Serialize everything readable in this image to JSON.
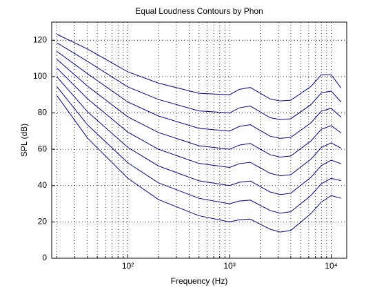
{
  "chart_data": {
    "type": "line",
    "title": "Equal Loudness Contours by Phon",
    "xlabel": "Frequency (Hz)",
    "ylabel": "SPL (dB)",
    "xscale": "log",
    "grid": true,
    "grid_style": "dotted",
    "xlim": [
      17.8,
      14200
    ],
    "ylim": [
      0,
      130
    ],
    "xticks": [
      {
        "value": 100,
        "label": "10²"
      },
      {
        "value": 1000,
        "label": "10³"
      },
      {
        "value": 10000,
        "label": "10⁴"
      }
    ],
    "xminorticks": [
      20,
      30,
      40,
      50,
      60,
      70,
      80,
      90,
      200,
      300,
      400,
      500,
      600,
      700,
      800,
      900,
      2000,
      3000,
      4000,
      5000,
      6000,
      7000,
      8000,
      9000
    ],
    "yticks": [
      0,
      20,
      40,
      60,
      80,
      100,
      120
    ],
    "x": [
      20,
      40,
      100,
      200,
      500,
      1000,
      1250,
      1600,
      2500,
      3150,
      4000,
      6300,
      8000,
      10000,
      12500
    ],
    "series": [
      {
        "color": "#00008b",
        "values": [
          89.6,
          66.2,
          44.0,
          32.3,
          23.4,
          20,
          21.2,
          21.5,
          16.0,
          14.4,
          15.3,
          24.5,
          31,
          34.5,
          33
        ]
      },
      {
        "color": "#00008b",
        "values": [
          94.5,
          73.5,
          52.5,
          41.5,
          33.0,
          30,
          31.5,
          32.0,
          26.3,
          24.8,
          25.6,
          34.5,
          41,
          44,
          42.7
        ]
      },
      {
        "color": "#00008b",
        "values": [
          99.9,
          80.7,
          61.0,
          50.8,
          42.6,
          40,
          41.8,
          42.5,
          36.5,
          35.0,
          35.8,
          44.5,
          51,
          54,
          52
        ]
      },
      {
        "color": "#00008b",
        "values": [
          104.7,
          87.8,
          69.4,
          60.0,
          52.2,
          50,
          52.1,
          52.8,
          46.8,
          45.4,
          46.0,
          54.5,
          61,
          63.5,
          60.6
        ]
      },
      {
        "color": "#00008b",
        "values": [
          109.5,
          94.8,
          77.8,
          69.2,
          61.9,
          60,
          62.3,
          63.2,
          57.0,
          55.7,
          56.3,
          64.5,
          71,
          73,
          69
        ]
      },
      {
        "color": "#00008b",
        "values": [
          113.9,
          101.6,
          86.0,
          78.3,
          71.5,
          70,
          72.6,
          73.5,
          67.2,
          66.0,
          66.5,
          74.5,
          81,
          82.5,
          77.7
        ]
      },
      {
        "color": "#00008b",
        "values": [
          118.6,
          108.4,
          94.3,
          87.4,
          81.1,
          80,
          82.8,
          83.8,
          77.4,
          76.3,
          76.8,
          84.5,
          91,
          92,
          86
        ]
      },
      {
        "color": "#00008b",
        "values": [
          123.3,
          115.2,
          102.6,
          96.4,
          90.8,
          90,
          93.0,
          94.0,
          87.7,
          86.6,
          87.0,
          94.5,
          101,
          101,
          93.7
        ]
      }
    ]
  }
}
